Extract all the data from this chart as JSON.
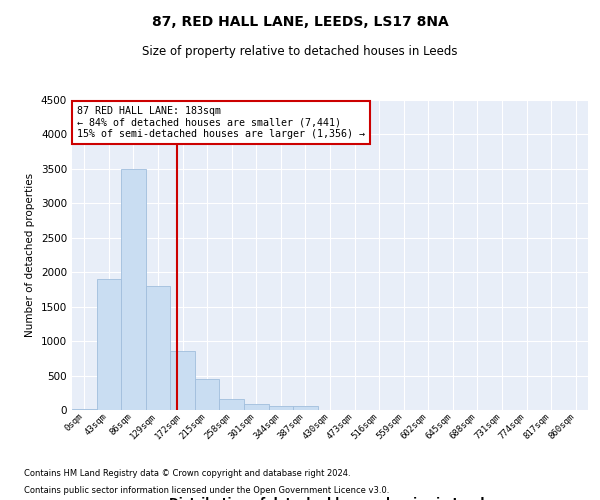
{
  "title": "87, RED HALL LANE, LEEDS, LS17 8NA",
  "subtitle": "Size of property relative to detached houses in Leeds",
  "xlabel": "Distribution of detached houses by size in Leeds",
  "ylabel": "Number of detached properties",
  "footnote1": "Contains HM Land Registry data © Crown copyright and database right 2024.",
  "footnote2": "Contains public sector information licensed under the Open Government Licence v3.0.",
  "bar_labels": [
    "0sqm",
    "43sqm",
    "86sqm",
    "129sqm",
    "172sqm",
    "215sqm",
    "258sqm",
    "301sqm",
    "344sqm",
    "387sqm",
    "430sqm",
    "473sqm",
    "516sqm",
    "559sqm",
    "602sqm",
    "645sqm",
    "688sqm",
    "731sqm",
    "774sqm",
    "817sqm",
    "860sqm"
  ],
  "bar_values": [
    10,
    1900,
    3500,
    1800,
    850,
    450,
    160,
    90,
    65,
    55,
    0,
    0,
    0,
    0,
    0,
    0,
    0,
    0,
    0,
    0,
    0
  ],
  "bar_color": "#c9ddf2",
  "bar_edge_color": "#a0bedd",
  "vline_color": "#cc0000",
  "ylim": [
    0,
    4500
  ],
  "yticks": [
    0,
    500,
    1000,
    1500,
    2000,
    2500,
    3000,
    3500,
    4000,
    4500
  ],
  "annotation_title": "87 RED HALL LANE: 183sqm",
  "annotation_line1": "← 84% of detached houses are smaller (7,441)",
  "annotation_line2": "15% of semi-detached houses are larger (1,356) →",
  "annotation_box_color": "#cc0000",
  "background_color": "#e8eef8",
  "vline_pos": 4.256
}
